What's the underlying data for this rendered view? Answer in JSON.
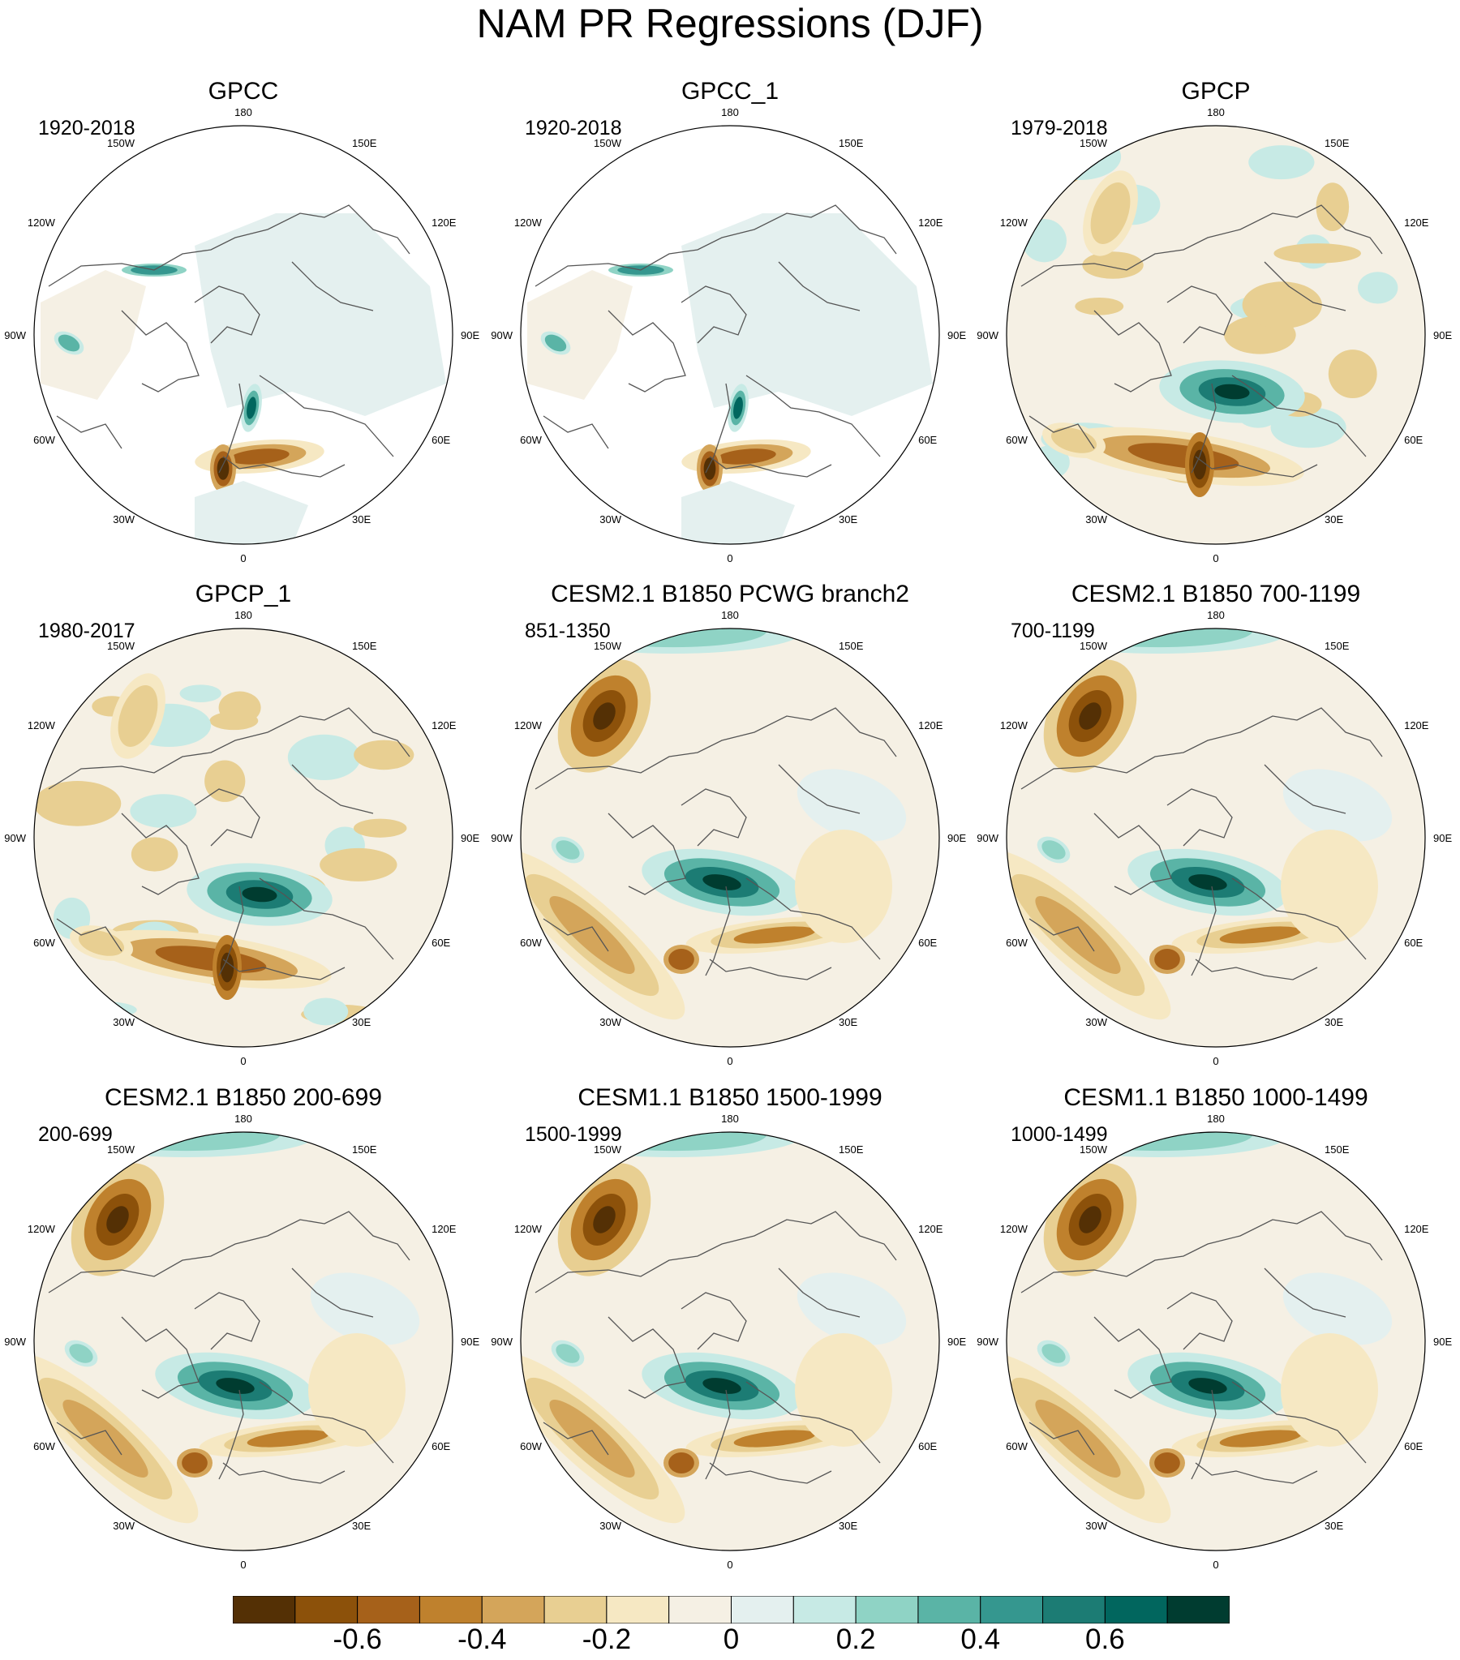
{
  "title": "NAM PR Regressions (DJF)",
  "panels": [
    {
      "title": "GPCC",
      "period": "1920-2018"
    },
    {
      "title": "GPCC_1",
      "period": "1920-2018"
    },
    {
      "title": "GPCP",
      "period": "1979-2018"
    },
    {
      "title": "GPCP_1",
      "period": "1980-2017"
    },
    {
      "title": "CESM2.1 B1850 PCWG branch2",
      "period": "851-1350"
    },
    {
      "title": "CESM2.1 B1850 700-1199",
      "period": "700-1199"
    },
    {
      "title": "CESM2.1 B1850 200-699",
      "period": "200-699"
    },
    {
      "title": "CESM1.1 B1850 1500-1999",
      "period": "1500-1999"
    },
    {
      "title": "CESM1.1 B1850 1000-1499",
      "period": "1000-1499"
    }
  ],
  "lon_labels": [
    "180",
    "150E",
    "120E",
    "90E",
    "60E",
    "30E",
    "0",
    "30W",
    "60W",
    "90W",
    "120W",
    "150W"
  ],
  "colorbar": {
    "colors": [
      "#543005",
      "#8c510a",
      "#a6611a",
      "#bf812d",
      "#d4a55a",
      "#e8cf92",
      "#f6e8c3",
      "#f5f0e4",
      "#e4f0ef",
      "#c7eae5",
      "#8fd3c5",
      "#5ab4a6",
      "#35978f",
      "#1c7c74",
      "#01665e",
      "#003c30"
    ],
    "tick_labels": [
      "-0.6",
      "-0.4",
      "-0.2",
      "0",
      "0.2",
      "0.4",
      "0.6"
    ]
  },
  "chart_data": {
    "type": "heatmap",
    "title": "NAM PR Regressions (DJF)",
    "projection": "north polar stereographic",
    "variable": "precipitation regression on NAM",
    "color_levels": [
      -0.7,
      -0.6,
      -0.5,
      -0.4,
      -0.3,
      -0.2,
      -0.1,
      0,
      0.1,
      0.2,
      0.3,
      0.4,
      0.5,
      0.6,
      0.7
    ],
    "colorbar_ticks": [
      -0.6,
      -0.4,
      -0.2,
      0,
      0.2,
      0.4,
      0.6
    ],
    "panels": [
      {
        "title": "GPCC",
        "period": "1920-2018",
        "land_only": true
      },
      {
        "title": "GPCC_1",
        "period": "1920-2018",
        "land_only": true
      },
      {
        "title": "GPCP",
        "period": "1979-2018",
        "land_only": false
      },
      {
        "title": "GPCP_1",
        "period": "1980-2017",
        "land_only": false
      },
      {
        "title": "CESM2.1 B1850 PCWG branch2",
        "period": "851-1350",
        "land_only": false
      },
      {
        "title": "CESM2.1 B1850 700-1199",
        "period": "700-1199",
        "land_only": false
      },
      {
        "title": "CESM2.1 B1850 200-699",
        "period": "200-699",
        "land_only": false
      },
      {
        "title": "CESM1.1 B1850 1500-1999",
        "period": "1500-1999",
        "land_only": false
      },
      {
        "title": "CESM1.1 B1850 1000-1499",
        "period": "1000-1499",
        "land_only": false
      }
    ]
  }
}
